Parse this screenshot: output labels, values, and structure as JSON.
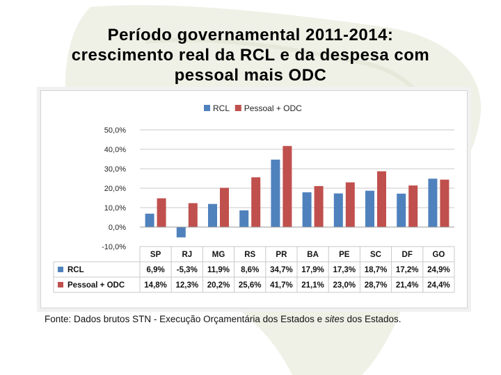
{
  "slide": {
    "title_lines": [
      "Período governamental 2011-2014:",
      "crescimento real da RCL e da despesa com",
      "pessoal mais ODC"
    ],
    "source_prefix": "Fonte: Dados brutos  STN - Execução Orçamentária dos Estados e ",
    "source_italic": "sites",
    "source_suffix": " dos Estados."
  },
  "colors": {
    "rcl": "#4F81BD",
    "pessoal": "#C0504D"
  },
  "chart_data": {
    "type": "bar",
    "title": "",
    "categories": [
      "SP",
      "RJ",
      "MG",
      "RS",
      "PR",
      "BA",
      "PE",
      "SC",
      "DF",
      "GO"
    ],
    "series": [
      {
        "name": "RCL",
        "values": [
          6.9,
          -5.3,
          11.9,
          8.6,
          34.7,
          17.9,
          17.3,
          18.7,
          17.2,
          24.9
        ],
        "labels": [
          "6,9%",
          "-5,3%",
          "11,9%",
          "8,6%",
          "34,7%",
          "17,9%",
          "17,3%",
          "18,7%",
          "17,2%",
          "24,9%"
        ]
      },
      {
        "name": "Pessoal + ODC",
        "values": [
          14.8,
          12.3,
          20.2,
          25.6,
          41.7,
          21.1,
          23.0,
          28.7,
          21.4,
          24.4
        ],
        "labels": [
          "14,8%",
          "12,3%",
          "20,2%",
          "25,6%",
          "41,7%",
          "21,1%",
          "23,0%",
          "28,7%",
          "21,4%",
          "24,4%"
        ]
      }
    ],
    "y_ticks": [
      50,
      40,
      30,
      20,
      10,
      0,
      -10
    ],
    "y_tick_labels": [
      "50,0%",
      "40,0%",
      "30,0%",
      "20,0%",
      "10,0%",
      "0,0%",
      "-10,0%"
    ],
    "ylim": [
      -10,
      50
    ],
    "xlabel": "",
    "ylabel": "",
    "grid": true,
    "legend_position": "top-center",
    "data_table": true
  }
}
